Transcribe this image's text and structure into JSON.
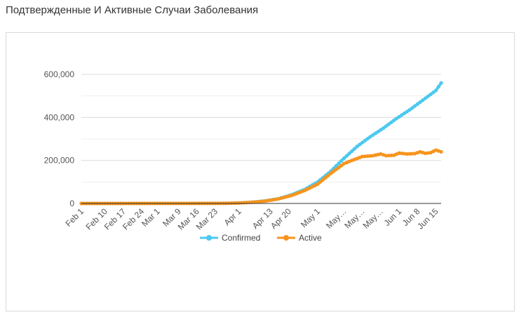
{
  "page": {
    "title": "Подтвержденные И Активные Случаи Заболевания"
  },
  "chart_data": {
    "type": "line",
    "title": "",
    "xlabel": "",
    "ylabel": "",
    "ylim": [
      0,
      600000
    ],
    "yticks": [
      "0",
      "200,000",
      "400,000",
      "600,000"
    ],
    "ytick_values": [
      0,
      200000,
      400000,
      600000
    ],
    "grid": true,
    "legend": "bottom",
    "colors": {
      "confirmed": "#4cc9f0",
      "active": "#f7941d",
      "grid": "#e6e6e6",
      "axis": "#333333"
    },
    "xtick_labels": [
      "Feb 1",
      "Feb 10",
      "Feb 17",
      "Feb 24",
      "Mar 1",
      "Mar 9",
      "Mar 16",
      "Mar 23",
      "Apr 1",
      "Apr 13",
      "Apr 20",
      "May 1",
      "May…",
      "May…",
      "May…",
      "Jun 1",
      "Jun 8",
      "Jun 15"
    ],
    "xtick_days": [
      0,
      9,
      16,
      23,
      29,
      37,
      44,
      51,
      60,
      72,
      79,
      90,
      100,
      107,
      114,
      121,
      128,
      135
    ],
    "x_start": "Feb 1",
    "x_end": "Jun 17",
    "series": [
      {
        "name": "Confirmed",
        "points": [
          [
            0,
            0
          ],
          [
            40,
            200
          ],
          [
            50,
            400
          ],
          [
            55,
            800
          ],
          [
            60,
            2500
          ],
          [
            65,
            6000
          ],
          [
            70,
            12000
          ],
          [
            75,
            22000
          ],
          [
            80,
            40000
          ],
          [
            85,
            65000
          ],
          [
            90,
            100000
          ],
          [
            95,
            150000
          ],
          [
            100,
            210000
          ],
          [
            105,
            265000
          ],
          [
            110,
            310000
          ],
          [
            115,
            350000
          ],
          [
            120,
            395000
          ],
          [
            125,
            435000
          ],
          [
            130,
            480000
          ],
          [
            135,
            525000
          ],
          [
            137,
            560000
          ]
        ]
      },
      {
        "name": "Active",
        "points": [
          [
            0,
            0
          ],
          [
            40,
            200
          ],
          [
            50,
            400
          ],
          [
            55,
            800
          ],
          [
            60,
            2300
          ],
          [
            65,
            5500
          ],
          [
            70,
            11000
          ],
          [
            75,
            21000
          ],
          [
            80,
            37000
          ],
          [
            85,
            60000
          ],
          [
            90,
            90000
          ],
          [
            95,
            140000
          ],
          [
            100,
            185000
          ],
          [
            103,
            200000
          ],
          [
            107,
            218000
          ],
          [
            111,
            222000
          ],
          [
            114,
            230000
          ],
          [
            116,
            222000
          ],
          [
            119,
            224000
          ],
          [
            121,
            234000
          ],
          [
            124,
            230000
          ],
          [
            127,
            232000
          ],
          [
            129,
            240000
          ],
          [
            131,
            233000
          ],
          [
            133,
            236000
          ],
          [
            135,
            248000
          ],
          [
            137,
            240000
          ]
        ]
      }
    ]
  }
}
